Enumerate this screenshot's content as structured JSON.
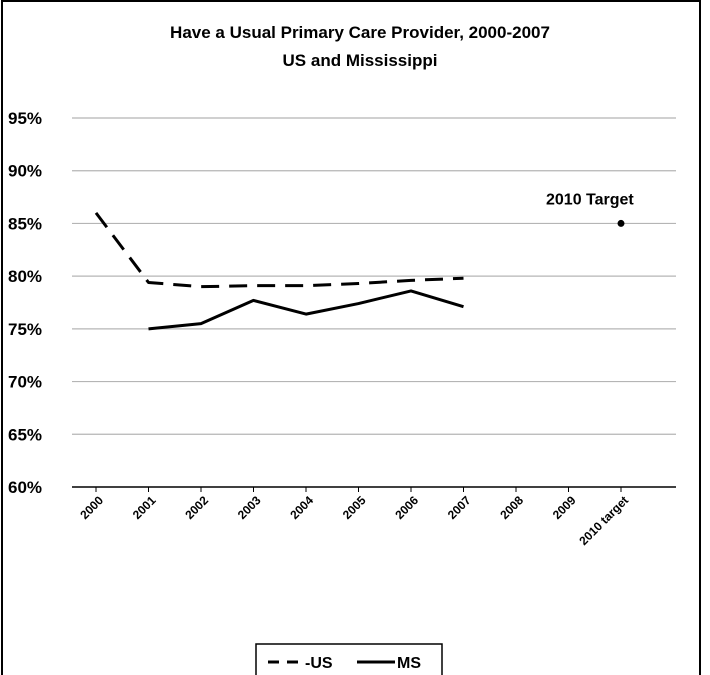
{
  "chart_data": {
    "type": "line",
    "title": "Have a Usual Primary Care Provider, 2000-2007",
    "subtitle": "US and Mississippi",
    "categories": [
      "2000",
      "2001",
      "2002",
      "2003",
      "2004",
      "2005",
      "2006",
      "2007",
      "2008",
      "2009",
      "2010 target"
    ],
    "y_ticks": [
      "95%",
      "90%",
      "85%",
      "80%",
      "75%",
      "70%",
      "65%",
      "60%"
    ],
    "ylim": [
      60,
      95
    ],
    "grid": true,
    "legend_position": "bottom",
    "series": [
      {
        "name": "-US",
        "style": "dashed",
        "color": "#000000",
        "values": [
          86.0,
          79.4,
          79.0,
          79.1,
          79.1,
          79.3,
          79.6,
          79.8,
          null,
          null,
          null
        ]
      },
      {
        "name": "MS",
        "style": "solid",
        "color": "#000000",
        "values": [
          null,
          75.0,
          75.5,
          77.7,
          76.4,
          77.4,
          78.6,
          77.1,
          null,
          null,
          null
        ]
      }
    ],
    "target": {
      "label": "2010 Target",
      "category": "2010 target",
      "value": 85
    }
  }
}
